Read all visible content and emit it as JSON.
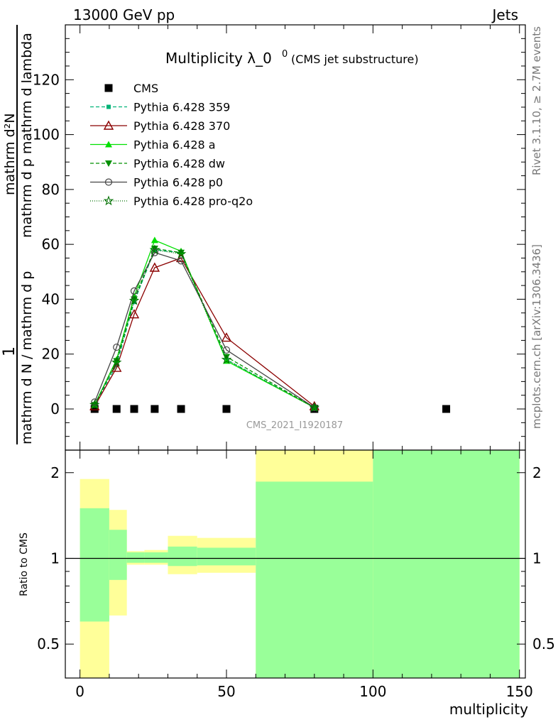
{
  "header": {
    "left": "13000 GeV pp",
    "right": "Jets"
  },
  "side_text": {
    "rivet": "Rivet 3.1.10, ≥ 2.7M events",
    "mcplots": "mcplots.cern.ch [arXiv:1306.3436]"
  },
  "colors": {
    "cms": "#000000",
    "p359": "#00b377",
    "p370": "#8b0000",
    "pa": "#00e000",
    "pdw": "#009000",
    "pp0": "#444444",
    "pproq2o": "#007000",
    "band_yellow": "#ffff99",
    "band_green": "#99ff99"
  },
  "chart_data": [
    {
      "type": "line",
      "title": "Multiplicity λ_0",
      "title_sup": "0",
      "title_suffix": "(CMS jet substructure)",
      "ylabel_numerator": "mathrm d²N",
      "ylabel_denominator": "mathrm d N / mathrm d p",
      "ylabel_text": "mathrm d p  mathrm d lambda",
      "ylabel_prefix": "1",
      "watermark": "CMS_2021_I1920187",
      "xlim": [
        -5,
        152
      ],
      "ylim": [
        -15,
        140
      ],
      "yticks": [
        0,
        20,
        40,
        60,
        80,
        100,
        120
      ],
      "xticks": [
        0,
        50,
        100,
        150
      ],
      "series": [
        {
          "name": "CMS",
          "key": "cms",
          "marker": "square",
          "x": [
            5,
            12.5,
            18.5,
            25.5,
            34.5,
            50,
            80,
            125
          ],
          "y": [
            0,
            0,
            0,
            0,
            0,
            0,
            0,
            0
          ]
        },
        {
          "name": "Pythia 6.428 359",
          "key": "p359",
          "marker": "small-square",
          "dash": "5,3",
          "x": [
            5,
            12.5,
            18.5,
            25.5,
            34.5,
            50,
            80
          ],
          "y": [
            1.5,
            16,
            39,
            58,
            57,
            18,
            0.5
          ]
        },
        {
          "name": "Pythia 6.428 370",
          "key": "p370",
          "marker": "open-triangle",
          "dash": "",
          "x": [
            5,
            12.5,
            18.5,
            25.5,
            34.5,
            50,
            80
          ],
          "y": [
            1,
            15,
            34.5,
            51.5,
            55,
            26,
            1
          ]
        },
        {
          "name": "Pythia 6.428 a",
          "key": "pa",
          "marker": "triangle",
          "dash": "",
          "x": [
            5,
            12.5,
            18.5,
            25.5,
            34.5,
            50,
            80
          ],
          "y": [
            1.5,
            18,
            41,
            61.5,
            57.5,
            17.5,
            0.5
          ]
        },
        {
          "name": "Pythia 6.428 dw",
          "key": "pdw",
          "marker": "triangle-down",
          "dash": "5,3",
          "x": [
            5,
            12.5,
            18.5,
            25.5,
            34.5,
            50,
            80
          ],
          "y": [
            1.5,
            17.5,
            40,
            58.5,
            57,
            19,
            0.5
          ]
        },
        {
          "name": "Pythia 6.428 p0",
          "key": "pp0",
          "marker": "open-circle",
          "dash": "",
          "x": [
            5,
            12.5,
            18.5,
            25.5,
            34.5,
            50,
            80
          ],
          "y": [
            2.5,
            22.5,
            43,
            57,
            54,
            21.5,
            0.5
          ]
        },
        {
          "name": "Pythia 6.428 pro-q2o",
          "key": "pproq2o",
          "marker": "star",
          "dash": "1,2",
          "x": [
            5,
            12.5,
            18.5,
            25.5,
            34.5,
            50,
            80
          ],
          "y": [
            1.5,
            17,
            39.5,
            58,
            56.5,
            18,
            0.5
          ]
        }
      ]
    },
    {
      "type": "area",
      "ylabel": "Ratio to CMS",
      "xlabel": "multiplicity",
      "xlim": [
        -5,
        152
      ],
      "ylim": [
        0.38,
        2.4
      ],
      "yticks": [
        0.5,
        1,
        2
      ],
      "xticks": [
        0,
        50,
        100,
        150
      ],
      "reference": 1,
      "bins": [
        {
          "x0": 0,
          "x1": 10,
          "yellow": [
            0.3,
            1.9
          ],
          "green": [
            0.6,
            1.5
          ]
        },
        {
          "x0": 10,
          "x1": 16,
          "yellow": [
            0.63,
            1.48
          ],
          "green": [
            0.84,
            1.26
          ]
        },
        {
          "x0": 16,
          "x1": 22,
          "yellow": [
            0.95,
            1.06
          ],
          "green": [
            0.965,
            1.05
          ]
        },
        {
          "x0": 22,
          "x1": 30,
          "yellow": [
            0.95,
            1.07
          ],
          "green": [
            0.965,
            1.05
          ]
        },
        {
          "x0": 30,
          "x1": 40,
          "yellow": [
            0.88,
            1.2
          ],
          "green": [
            0.94,
            1.1
          ]
        },
        {
          "x0": 40,
          "x1": 60,
          "yellow": [
            0.89,
            1.18
          ],
          "green": [
            0.945,
            1.09
          ]
        },
        {
          "x0": 60,
          "x1": 100,
          "yellow": [
            0.3,
            3.0
          ],
          "green": [
            0.3,
            1.86
          ]
        },
        {
          "x0": 100,
          "x1": 150,
          "yellow": [
            0.3,
            3.0
          ],
          "green": [
            0.3,
            3.0
          ]
        }
      ]
    }
  ]
}
